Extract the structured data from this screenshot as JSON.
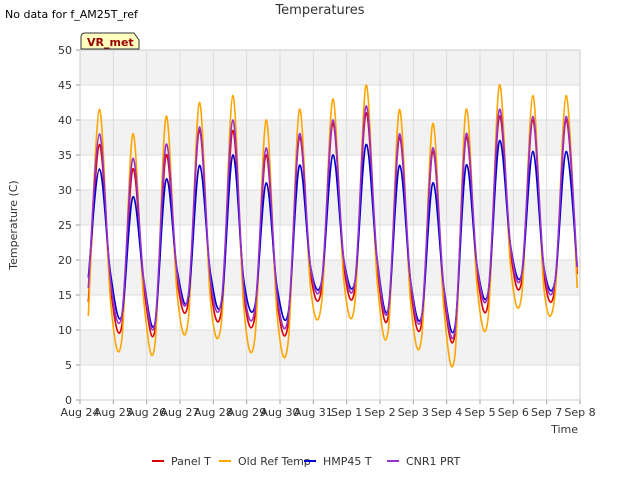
{
  "chart_data": {
    "type": "line",
    "title": "Temperatures",
    "corner_note": "No data for f_AM25T_ref",
    "badge": "VR_met",
    "xlabel": "Time",
    "ylabel": "Temperature (C)",
    "ylim": [
      0,
      50
    ],
    "yticks": [
      0,
      5,
      10,
      15,
      20,
      25,
      30,
      35,
      40,
      45,
      50
    ],
    "xlim": [
      "2023-08-24",
      "2023-09-08"
    ],
    "xticks": [
      "Aug 24",
      "Aug 25",
      "Aug 26",
      "Aug 27",
      "Aug 28",
      "Aug 29",
      "Aug 30",
      "Aug 31",
      "Sep 1",
      "Sep 2",
      "Sep 3",
      "Sep 4",
      "Sep 5",
      "Sep 6",
      "Sep 7",
      "Sep 8"
    ],
    "grid": true,
    "legend_position": "bottom",
    "series": [
      {
        "name": "Panel T",
        "color": "#dd0000",
        "x": [
          "2023-08-24T06:00",
          "2023-08-24T14:00",
          "2023-08-24T22:00",
          "2023-08-25T06:00",
          "2023-08-25T14:00",
          "2023-08-25T22:00",
          "2023-08-26T06:00",
          "2023-08-26T14:00",
          "2023-08-26T22:00",
          "2023-08-27T06:00",
          "2023-08-27T14:00",
          "2023-08-27T22:00",
          "2023-08-28T06:00",
          "2023-08-28T14:00",
          "2023-08-28T22:00",
          "2023-08-29T06:00",
          "2023-08-29T14:00",
          "2023-08-29T22:00",
          "2023-08-30T06:00",
          "2023-08-30T14:00",
          "2023-08-30T22:00",
          "2023-08-31T06:00",
          "2023-08-31T14:00",
          "2023-08-31T22:00",
          "2023-09-01T06:00",
          "2023-09-01T14:00",
          "2023-09-01T22:00",
          "2023-09-02T06:00",
          "2023-09-02T14:00",
          "2023-09-02T22:00",
          "2023-09-03T06:00",
          "2023-09-03T14:00",
          "2023-09-03T22:00",
          "2023-09-04T06:00",
          "2023-09-04T14:00",
          "2023-09-04T22:00",
          "2023-09-05T06:00",
          "2023-09-05T14:00",
          "2023-09-05T22:00",
          "2023-09-06T06:00",
          "2023-09-06T14:00",
          "2023-09-06T22:00",
          "2023-09-07T06:00",
          "2023-09-07T14:00",
          "2023-09-07T22:00"
        ],
        "y": [
          14,
          36.5,
          16,
          10.5,
          33,
          16,
          10,
          35,
          17,
          14,
          38.5,
          16,
          13,
          38.5,
          15,
          12,
          35,
          14,
          11,
          37.5,
          18,
          16,
          39.5,
          19,
          16,
          41,
          19,
          12,
          37.5,
          16,
          11,
          35.5,
          15,
          9.5,
          37.5,
          18,
          14,
          40.5,
          21,
          17,
          40,
          18,
          16,
          40,
          18
        ]
      },
      {
        "name": "Old Ref Temp",
        "color": "#ffa500",
        "x": [
          "2023-08-24T06:00",
          "2023-08-24T14:00",
          "2023-08-24T22:00",
          "2023-08-25T06:00",
          "2023-08-25T14:00",
          "2023-08-25T22:00",
          "2023-08-26T06:00",
          "2023-08-26T14:00",
          "2023-08-26T22:00",
          "2023-08-27T06:00",
          "2023-08-27T14:00",
          "2023-08-27T22:00",
          "2023-08-28T06:00",
          "2023-08-28T14:00",
          "2023-08-28T22:00",
          "2023-08-29T06:00",
          "2023-08-29T14:00",
          "2023-08-29T22:00",
          "2023-08-30T06:00",
          "2023-08-30T14:00",
          "2023-08-30T22:00",
          "2023-08-31T06:00",
          "2023-08-31T14:00",
          "2023-08-31T22:00",
          "2023-09-01T06:00",
          "2023-09-01T14:00",
          "2023-09-01T22:00",
          "2023-09-02T06:00",
          "2023-09-02T14:00",
          "2023-09-02T22:00",
          "2023-09-03T06:00",
          "2023-09-03T14:00",
          "2023-09-03T22:00",
          "2023-09-04T06:00",
          "2023-09-04T14:00",
          "2023-09-04T22:00",
          "2023-09-05T06:00",
          "2023-09-05T14:00",
          "2023-09-05T22:00",
          "2023-09-06T06:00",
          "2023-09-06T14:00",
          "2023-09-06T22:00",
          "2023-09-07T06:00",
          "2023-09-07T14:00",
          "2023-09-07T22:00"
        ],
        "y": [
          12,
          41.5,
          14,
          8.5,
          38,
          14,
          8,
          40.5,
          15,
          11.5,
          42.5,
          14,
          11.5,
          43.5,
          13,
          9,
          40,
          12,
          8.5,
          41.5,
          16,
          14,
          43,
          17,
          14,
          45,
          17,
          10,
          41.5,
          14,
          9,
          39.5,
          13,
          6.5,
          41.5,
          16,
          12,
          45,
          19,
          15,
          43.5,
          16,
          15,
          43.5,
          16
        ]
      },
      {
        "name": "HMP45 T",
        "color": "#0000cc",
        "x": [
          "2023-08-24T06:00",
          "2023-08-24T14:00",
          "2023-08-24T22:00",
          "2023-08-25T06:00",
          "2023-08-25T14:00",
          "2023-08-25T22:00",
          "2023-08-26T06:00",
          "2023-08-26T14:00",
          "2023-08-26T22:00",
          "2023-08-27T06:00",
          "2023-08-27T14:00",
          "2023-08-27T22:00",
          "2023-08-28T06:00",
          "2023-08-28T14:00",
          "2023-08-28T22:00",
          "2023-08-29T06:00",
          "2023-08-29T14:00",
          "2023-08-29T22:00",
          "2023-08-30T06:00",
          "2023-08-30T14:00",
          "2023-08-30T22:00",
          "2023-08-31T06:00",
          "2023-08-31T14:00",
          "2023-08-31T22:00",
          "2023-09-01T06:00",
          "2023-09-01T14:00",
          "2023-09-01T22:00",
          "2023-09-02T06:00",
          "2023-09-02T14:00",
          "2023-09-02T22:00",
          "2023-09-03T06:00",
          "2023-09-03T14:00",
          "2023-09-03T22:00",
          "2023-09-04T06:00",
          "2023-09-04T14:00",
          "2023-09-04T22:00",
          "2023-09-05T06:00",
          "2023-09-05T14:00",
          "2023-09-05T22:00",
          "2023-09-06T06:00",
          "2023-09-06T14:00",
          "2023-09-06T22:00",
          "2023-09-07T06:00",
          "2023-09-07T14:00",
          "2023-09-07T22:00"
        ],
        "y": [
          17.5,
          33,
          18,
          12,
          29,
          17,
          11,
          31.5,
          18.5,
          14.5,
          33.5,
          18,
          14,
          35,
          17,
          13.5,
          31,
          16,
          12.5,
          33.5,
          19,
          17,
          35,
          20,
          17,
          36.5,
          20,
          13,
          33.5,
          17,
          12,
          31,
          16,
          10.5,
          33.5,
          19,
          15.5,
          37,
          22,
          18,
          35.5,
          19,
          17,
          35.5,
          19
        ]
      },
      {
        "name": "CNR1 PRT",
        "color": "#9932cc",
        "x": [
          "2023-08-24T06:00",
          "2023-08-24T14:00",
          "2023-08-24T22:00",
          "2023-08-25T06:00",
          "2023-08-25T14:00",
          "2023-08-25T22:00",
          "2023-08-26T06:00",
          "2023-08-26T14:00",
          "2023-08-26T22:00",
          "2023-08-27T06:00",
          "2023-08-27T14:00",
          "2023-08-27T22:00",
          "2023-08-28T06:00",
          "2023-08-28T14:00",
          "2023-08-28T22:00",
          "2023-08-29T06:00",
          "2023-08-29T14:00",
          "2023-08-29T22:00",
          "2023-08-30T06:00",
          "2023-08-30T14:00",
          "2023-08-30T22:00",
          "2023-08-31T06:00",
          "2023-08-31T14:00",
          "2023-08-31T22:00",
          "2023-09-01T06:00",
          "2023-09-01T14:00",
          "2023-09-01T22:00",
          "2023-09-02T06:00",
          "2023-09-02T14:00",
          "2023-09-02T22:00",
          "2023-09-03T06:00",
          "2023-09-03T14:00",
          "2023-09-03T22:00",
          "2023-09-04T06:00",
          "2023-09-04T14:00",
          "2023-09-04T22:00",
          "2023-09-05T06:00",
          "2023-09-05T14:00",
          "2023-09-05T22:00",
          "2023-09-06T06:00",
          "2023-09-06T14:00",
          "2023-09-06T22:00",
          "2023-09-07T06:00",
          "2023-09-07T14:00",
          "2023-09-07T22:00"
        ],
        "y": [
          16,
          38,
          17,
          12,
          34.5,
          17,
          11,
          36.5,
          18,
          15,
          39,
          17,
          14.5,
          40,
          16,
          13,
          36,
          15,
          12,
          38,
          19,
          17,
          40,
          20,
          17,
          42,
          20,
          13,
          38,
          17,
          12,
          36,
          16,
          10,
          38,
          19,
          15.5,
          41.5,
          22,
          18,
          40.5,
          19,
          17,
          40.5,
          19
        ]
      }
    ]
  }
}
